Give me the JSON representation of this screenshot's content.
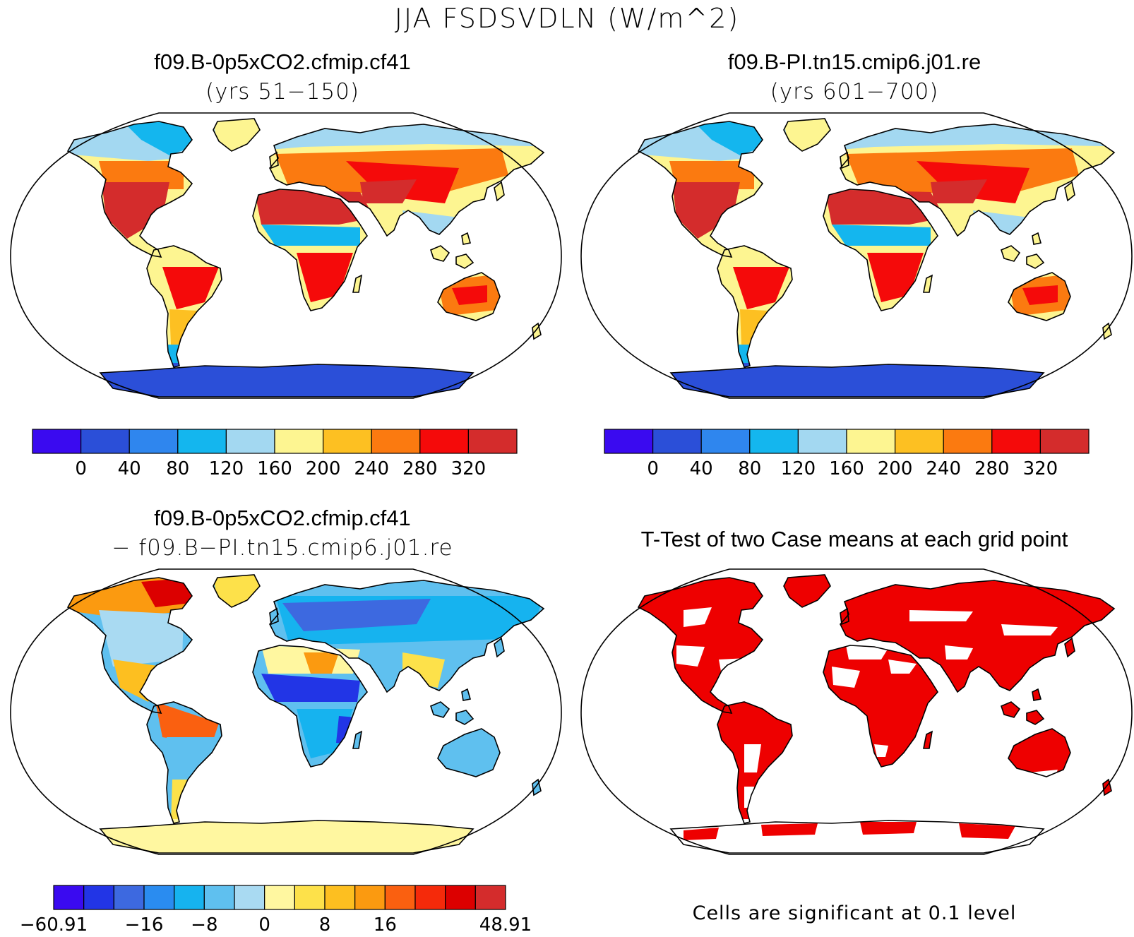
{
  "figure": {
    "title": "JJA FSDSVDLN (W/m^2)"
  },
  "panels": [
    {
      "id": "case1",
      "title": "f09.B-0p5xCO2.cfmip.cf41",
      "subtitle": "(yrs 51−150)"
    },
    {
      "id": "case2",
      "title": "f09.B-PI.tn15.cmip6.j01.re",
      "subtitle": "(yrs 601−700)"
    },
    {
      "id": "diff",
      "title": "f09.B-0p5xCO2.cfmip.cf41",
      "subtitle": "− f09.B−PI.tn15.cmip6.j01.re"
    },
    {
      "id": "ttest",
      "title": "T-Test of two Case means at each grid point"
    }
  ],
  "colorbars": {
    "absolute": {
      "colors": [
        "#3a0af0",
        "#2b4fd8",
        "#2f86ee",
        "#14b6ee",
        "#a3d8f1",
        "#fdf591",
        "#fdc022",
        "#fb7a10",
        "#f50a0a",
        "#d42c2c"
      ],
      "labels": [
        "0",
        "40",
        "80",
        "120",
        "160",
        "200",
        "240",
        "280",
        "320"
      ]
    },
    "difference": {
      "colors": [
        "#3a0af0",
        "#2235e6",
        "#3d69e0",
        "#2a8cf0",
        "#16b3ef",
        "#5fc0ef",
        "#a9daf2",
        "#fff7a0",
        "#fde14a",
        "#fdbf20",
        "#fb9a10",
        "#fa6010",
        "#f52a0a",
        "#dc0000",
        "#d42c2c"
      ],
      "labels": [
        "−60.91",
        "−16",
        "−8",
        "0",
        "8",
        "16",
        "48.91"
      ]
    }
  },
  "significance": {
    "color": "#ee0000",
    "note": "Cells are significant at 0.1 level"
  }
}
